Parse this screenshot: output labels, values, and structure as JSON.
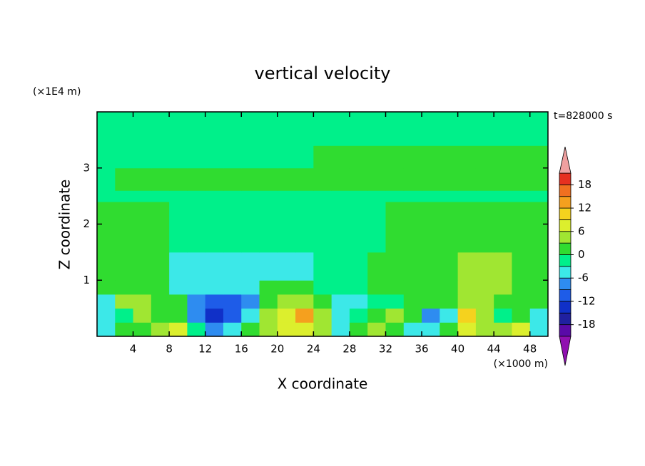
{
  "chart_data": {
    "type": "contour",
    "title": "vertical velocity",
    "xlabel": "X coordinate",
    "ylabel": "Z coordinate",
    "x_unit": "(×1000 m)",
    "y_unit": "(×1E4 m)",
    "annotation": "t=828000 s",
    "xlim": [
      0,
      50
    ],
    "ylim": [
      0,
      4
    ],
    "xticks": [
      4,
      8,
      12,
      16,
      20,
      24,
      28,
      32,
      36,
      40,
      44,
      48
    ],
    "yticks": [
      1,
      2,
      3
    ],
    "x_edges": [
      0,
      2,
      4,
      6,
      8,
      10,
      12,
      14,
      16,
      18,
      20,
      22,
      24,
      26,
      28,
      30,
      32,
      34,
      36,
      38,
      40,
      42,
      44,
      46,
      48,
      50
    ],
    "z_edges": [
      0,
      0.25,
      0.5,
      0.75,
      1,
      1.5,
      2,
      2.4,
      2.6,
      3,
      3.4,
      4
    ],
    "field": [
      [
        -4,
        1,
        1,
        4,
        7,
        -1,
        -7,
        -4,
        1,
        4,
        7,
        7,
        4,
        -4,
        1,
        4,
        1,
        -4,
        -4,
        1,
        7,
        4,
        4,
        7,
        -4
      ],
      [
        -4,
        -1,
        4,
        1,
        1,
        -7,
        -13,
        -10,
        -4,
        4,
        7,
        13,
        4,
        -4,
        -1,
        1,
        4,
        1,
        -7,
        -4,
        10,
        4,
        -1,
        1,
        -4
      ],
      [
        -4,
        4,
        4,
        1,
        1,
        -7,
        -10,
        -10,
        -7,
        1,
        4,
        4,
        1,
        -4,
        -4,
        -1,
        -1,
        1,
        1,
        1,
        4,
        4,
        1,
        1,
        1
      ],
      [
        1,
        1,
        1,
        1,
        -4,
        -4,
        -4,
        -4,
        -4,
        1,
        1,
        1,
        -1,
        -1,
        -1,
        1,
        1,
        1,
        1,
        1,
        4,
        4,
        4,
        1,
        1
      ],
      [
        1,
        1,
        1,
        1,
        -4,
        -4,
        -4,
        -4,
        -4,
        -4,
        -4,
        -4,
        -1,
        -1,
        -1,
        1,
        1,
        1,
        1,
        1,
        4,
        4,
        4,
        1,
        1
      ],
      [
        1,
        1,
        1,
        1,
        -1,
        -1,
        -1,
        -1,
        -1,
        -1,
        -1,
        -1,
        -1,
        -1,
        -1,
        -1,
        1,
        1,
        1,
        1,
        1,
        1,
        1,
        1,
        1
      ],
      [
        1,
        1,
        1,
        1,
        -1,
        -1,
        -1,
        -1,
        -1,
        -1,
        -1,
        -1,
        -1,
        -1,
        -1,
        -1,
        1,
        1,
        1,
        1,
        1,
        1,
        1,
        1,
        1
      ],
      [
        -1,
        -1,
        -1,
        -1,
        -1,
        -1,
        -1,
        -1,
        -1,
        -1,
        -1,
        -1,
        -1,
        -1,
        -1,
        -1,
        -1,
        -1,
        -1,
        -1,
        -1,
        -1,
        -1,
        -1,
        -1
      ],
      [
        -1,
        1,
        1,
        1,
        1,
        1,
        1,
        1,
        1,
        1,
        1,
        1,
        1,
        1,
        1,
        1,
        1,
        1,
        1,
        1,
        1,
        1,
        1,
        1,
        1
      ],
      [
        -1,
        -1,
        -1,
        -1,
        -1,
        -1,
        -1,
        -1,
        -1,
        -1,
        -1,
        -1,
        1,
        1,
        1,
        1,
        1,
        1,
        1,
        1,
        1,
        1,
        1,
        1,
        1
      ],
      [
        -1,
        -1,
        -1,
        -1,
        -1,
        -1,
        -1,
        -1,
        -1,
        -1,
        -1,
        -1,
        -1,
        -1,
        -1,
        -1,
        -1,
        -1,
        -1,
        -1,
        -1,
        -1,
        -1,
        -1,
        -1
      ]
    ],
    "colorbar": {
      "levels": [
        -21,
        -18,
        -15,
        -12,
        -9,
        -6,
        -3,
        0,
        3,
        6,
        9,
        12,
        15,
        18,
        21
      ],
      "colors": [
        "#5a0aa8",
        "#2020a0",
        "#1030c8",
        "#1e5ce8",
        "#2e8cf0",
        "#3ce8e8",
        "#00f08a",
        "#30dc30",
        "#a0e632",
        "#dcef2d",
        "#f5d21e",
        "#f5a01e",
        "#f07020",
        "#e63020"
      ],
      "under_color": "#9010b0",
      "over_color": "#f0a0a0",
      "ticks": [
        -18,
        -12,
        -6,
        0,
        6,
        12,
        18
      ]
    }
  }
}
